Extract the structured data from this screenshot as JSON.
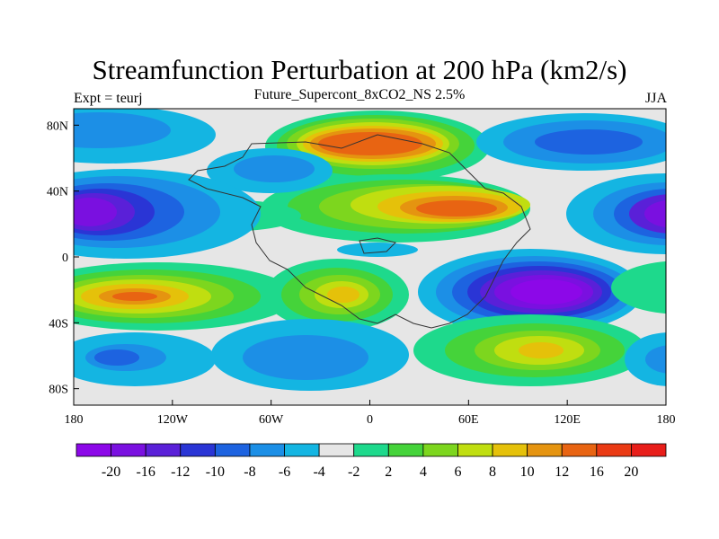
{
  "chart_data": {
    "type": "contour_map",
    "title": "Streamfunction Perturbation at 200 hPa (km2/s)",
    "left_string": "Expt = teurj",
    "center_string": "Future_Supercont_8xCO2_NS 2.5%",
    "right_string": "JJA",
    "x_ticks": [
      "180",
      "120W",
      "60W",
      "0",
      "60E",
      "120E",
      "180"
    ],
    "y_ticks": [
      "80N",
      "40N",
      "0",
      "40S",
      "80S"
    ],
    "xlim": [
      -180,
      180
    ],
    "ylim": [
      -90,
      90
    ],
    "colorbar_labels": [
      "-20",
      "-16",
      "-12",
      "-10",
      "-8",
      "-6",
      "-4",
      "-2",
      "2",
      "4",
      "6",
      "8",
      "10",
      "12",
      "16",
      "20"
    ],
    "colorbar_colors": [
      "#8C08E8",
      "#7A10E0",
      "#5A20D8",
      "#2A35D5",
      "#1D63E0",
      "#1C8FE6",
      "#14B5E2",
      "#E6E6E6",
      "#1ED98C",
      "#45D33A",
      "#7DD61E",
      "#C0DE10",
      "#E5C10A",
      "#E59410",
      "#E86412",
      "#EA3A14",
      "#E81E1A"
    ]
  }
}
